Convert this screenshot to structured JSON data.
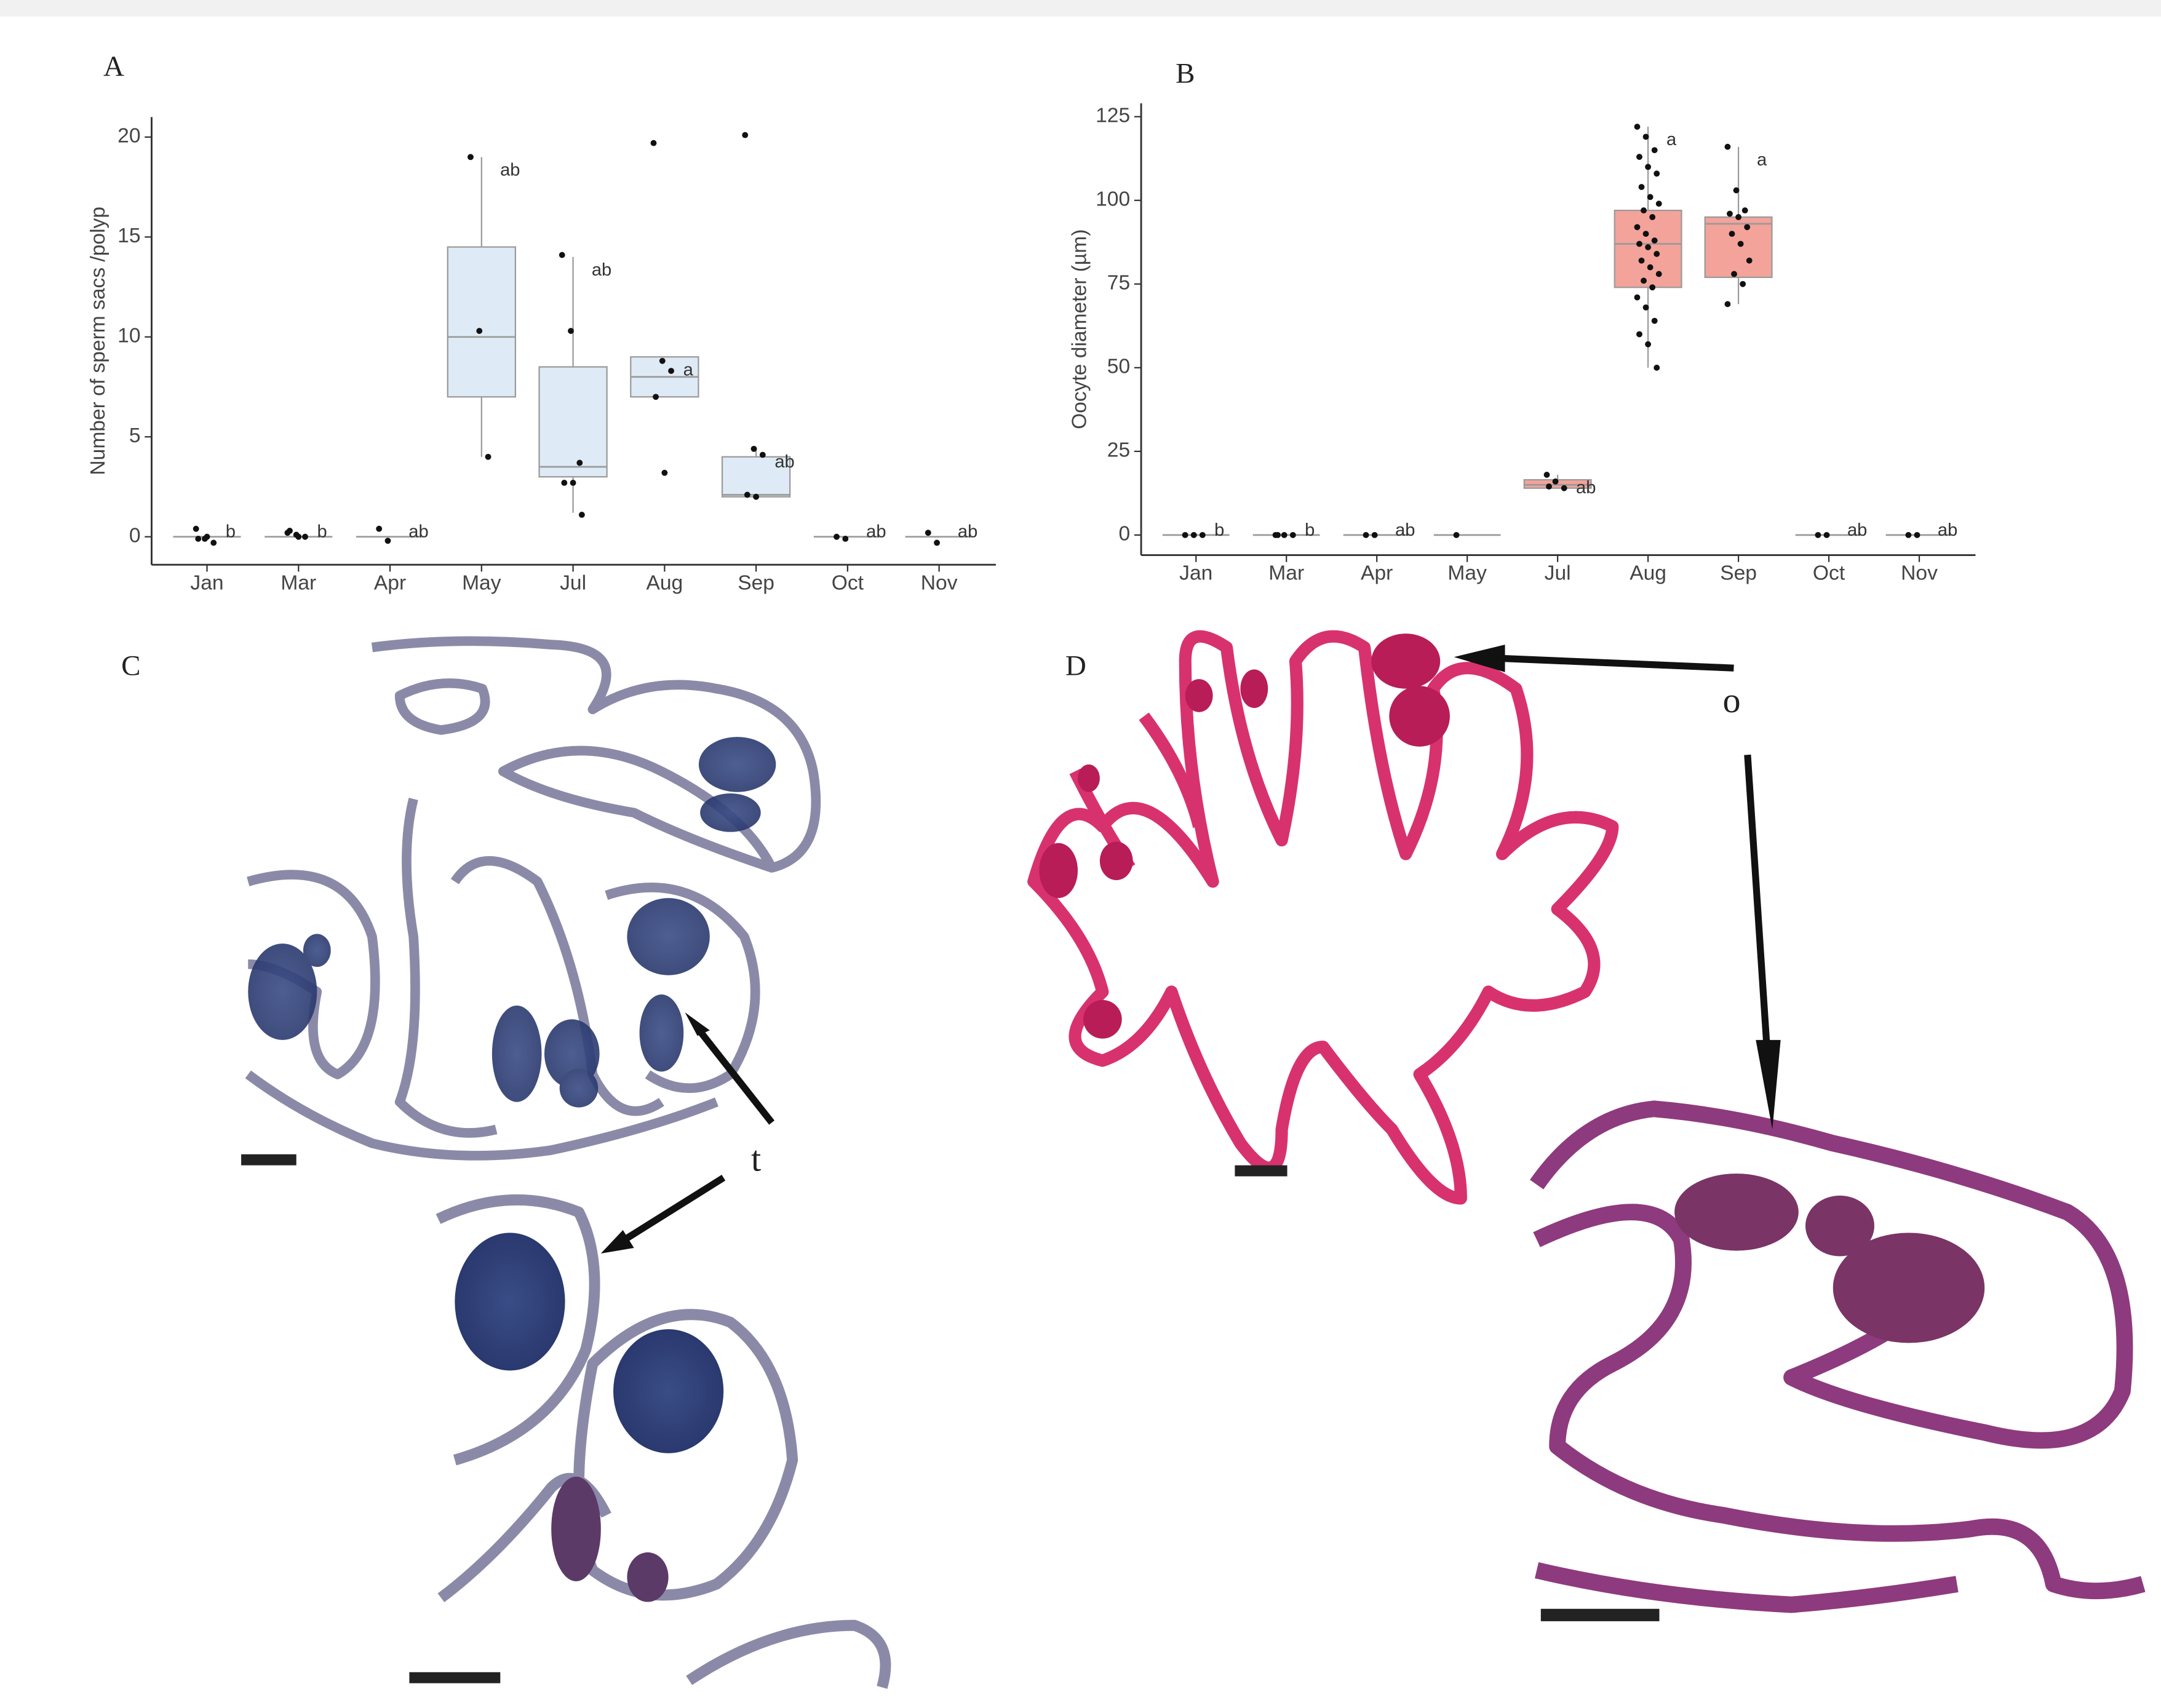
{
  "panels": [
    "A",
    "B",
    "C",
    "D"
  ],
  "annotations": [
    "t",
    "o"
  ],
  "chart_data": [
    {
      "type": "box",
      "ylabel": "Number of sperm sacs /polyp",
      "color": "#deebf6",
      "stroke": "#9a9a9a",
      "categories": [
        "Jan",
        "Mar",
        "Apr",
        "May",
        "Jul",
        "Aug",
        "Sep",
        "Oct",
        "Nov"
      ],
      "ylim": [
        -1.4,
        21
      ],
      "yticks": [
        0,
        5,
        10,
        15,
        20
      ],
      "boxes": [
        {
          "q1": 0,
          "median": 0,
          "q3": 0,
          "whisker_low": 0,
          "whisker_high": 0,
          "points": [
            0.4,
            -0.1,
            -0.3,
            -0.1,
            0
          ],
          "letter": "b"
        },
        {
          "q1": 0,
          "median": 0,
          "q3": 0,
          "whisker_low": 0,
          "whisker_high": 0,
          "points": [
            0.2,
            0.1,
            0,
            0.3,
            0
          ],
          "letter": "b"
        },
        {
          "q1": 0,
          "median": 0,
          "q3": 0,
          "whisker_low": 0,
          "whisker_high": 0,
          "points": [
            0.4,
            -0.2
          ],
          "letter": "ab"
        },
        {
          "q1": 7,
          "median": 10,
          "q3": 14.5,
          "whisker_low": 4,
          "whisker_high": 19,
          "points": [
            19,
            10.3,
            4
          ],
          "letter": "ab"
        },
        {
          "q1": 3,
          "median": 3.5,
          "q3": 8.5,
          "whisker_low": 1.2,
          "whisker_high": 14,
          "points": [
            14.1,
            10.3,
            3.7,
            2.7,
            2.7,
            1.1
          ],
          "letter": "ab"
        },
        {
          "q1": 7,
          "median": 8,
          "q3": 9,
          "whisker_low": 7,
          "whisker_high": 9,
          "points": [
            19.7,
            8.8,
            8.3,
            7,
            3.2
          ],
          "letter": "a"
        },
        {
          "q1": 2,
          "median": 2.1,
          "q3": 4,
          "whisker_low": 2,
          "whisker_high": 4.4,
          "points": [
            20.1,
            4.4,
            4.1,
            2.1,
            2
          ],
          "letter": "ab"
        },
        {
          "q1": 0,
          "median": 0,
          "q3": 0,
          "whisker_low": 0,
          "whisker_high": 0,
          "points": [
            0,
            -0.1
          ],
          "letter": "ab"
        },
        {
          "q1": 0,
          "median": 0,
          "q3": 0,
          "whisker_low": 0,
          "whisker_high": 0,
          "points": [
            0.2,
            -0.3
          ],
          "letter": "ab"
        }
      ]
    },
    {
      "type": "box",
      "ylabel": "Oocyte diameter (µm)",
      "color": "#f4a39a",
      "stroke": "#9a9a9a",
      "categories": [
        "Jan",
        "Mar",
        "Apr",
        "May",
        "Jul",
        "Aug",
        "Sep",
        "Oct",
        "Nov"
      ],
      "ylim": [
        -6,
        129
      ],
      "yticks": [
        0,
        25,
        50,
        75,
        100,
        125
      ],
      "boxes": [
        {
          "q1": 0,
          "median": 0,
          "q3": 0,
          "whisker_low": 0,
          "whisker_high": 0,
          "points": [
            0,
            0,
            0
          ],
          "letter": "b"
        },
        {
          "q1": 0,
          "median": 0,
          "q3": 0,
          "whisker_low": 0,
          "whisker_high": 0,
          "points": [
            0,
            0,
            0,
            0
          ],
          "letter": "b"
        },
        {
          "q1": 0,
          "median": 0,
          "q3": 0,
          "whisker_low": 0,
          "whisker_high": 0,
          "points": [
            0,
            0
          ],
          "letter": "ab"
        },
        {
          "q1": 0,
          "median": 0,
          "q3": 0,
          "whisker_low": 0,
          "whisker_high": 0,
          "points": [
            0
          ],
          "letter": null
        },
        {
          "q1": 14,
          "median": 15,
          "q3": 16.5,
          "whisker_low": 14,
          "whisker_high": 18,
          "points": [
            18,
            16,
            14,
            14.5
          ],
          "letter": "ab"
        },
        {
          "q1": 74,
          "median": 87,
          "q3": 97,
          "whisker_low": 50,
          "whisker_high": 122,
          "points": [
            122,
            119,
            115,
            113,
            110,
            108,
            104,
            101,
            99,
            97,
            95,
            92,
            90,
            88,
            87,
            86,
            84,
            82,
            80,
            78,
            76,
            74,
            71,
            68,
            64,
            60,
            57,
            50
          ],
          "letter": "a"
        },
        {
          "q1": 77,
          "median": 93,
          "q3": 95,
          "whisker_low": 69,
          "whisker_high": 116,
          "points": [
            116,
            103,
            97,
            96,
            95,
            92,
            90,
            87,
            82,
            78,
            75,
            69
          ],
          "letter": "a"
        },
        {
          "q1": 0,
          "median": 0,
          "q3": 0,
          "whisker_low": 0,
          "whisker_high": 0,
          "points": [
            0,
            0
          ],
          "letter": "ab"
        },
        {
          "q1": 0,
          "median": 0,
          "q3": 0,
          "whisker_low": 0,
          "whisker_high": 0,
          "points": [
            0,
            0
          ],
          "letter": "ab"
        }
      ]
    }
  ]
}
